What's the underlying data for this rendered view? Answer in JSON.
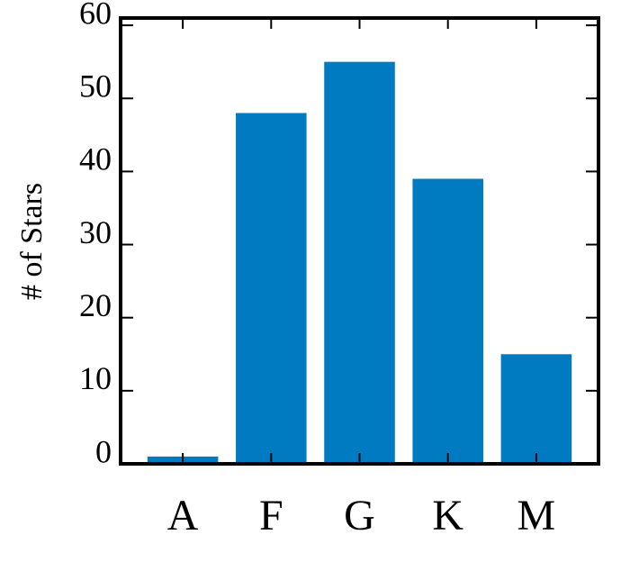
{
  "chart_data": {
    "type": "bar",
    "y_label": "# of Stars",
    "categories": [
      "A",
      "F",
      "G",
      "K",
      "M"
    ],
    "values": [
      1,
      48,
      55,
      39,
      15
    ],
    "color": "#007bc2",
    "ylim": [
      0,
      61
    ],
    "yticks": [
      0,
      10,
      20,
      30,
      40,
      50,
      60
    ],
    "grid": false
  }
}
